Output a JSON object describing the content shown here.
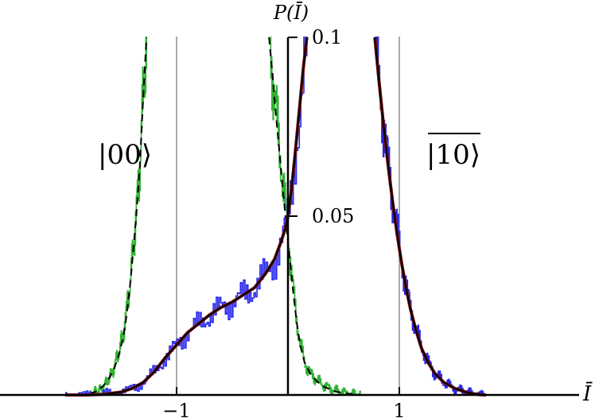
{
  "chart_data": {
    "type": "line",
    "title": "",
    "xlabel": "Ī",
    "ylabel": "P(Ī)",
    "xlim": [
      -1.77,
      1.77
    ],
    "ylim": [
      0,
      0.1
    ],
    "x_ticks": [
      {
        "value": -1,
        "label": "−1"
      },
      {
        "value": 1,
        "label": "1"
      }
    ],
    "y_ticks": [
      {
        "value": 0.05,
        "label": "0.05"
      },
      {
        "value": 0.1,
        "label": "0.1"
      }
    ],
    "vertical_gridlines": [
      -1,
      0,
      1
    ],
    "annotations": [
      {
        "text": "|00⟩",
        "x": -1.2,
        "y": 0.07
      },
      {
        "text": "|10⟩",
        "x": 0.45,
        "y": 0.07,
        "overline": true
      }
    ],
    "colors": {
      "histogram_green": "#33b233",
      "histogram_blue": "#2626ee",
      "fit_dark_red": "#7a1010",
      "theory_black": "#000000",
      "gridline": "#aaaaaa"
    },
    "series": [
      {
        "color": "#33b233",
        "style": "histogram",
        "x": [
          -1.78,
          -1.72,
          -1.66,
          -1.6,
          -1.56,
          -1.52,
          -1.48,
          -1.45,
          -1.42,
          -1.39,
          -1.36,
          -1.33,
          -1.31,
          -1.29,
          -1.27
        ],
        "values": [
          0.0002,
          0.001,
          0.002,
          0.005,
          0.008,
          0.012,
          0.017,
          0.024,
          0.031,
          0.041,
          0.052,
          0.065,
          0.078,
          0.09,
          0.1
        ]
      },
      {
        "color": "#000000",
        "style": "dashed",
        "x": [
          -1.78,
          -1.72,
          -1.66,
          -1.6,
          -1.56,
          -1.52,
          -1.48,
          -1.45,
          -1.42,
          -1.39,
          -1.36,
          -1.33,
          -1.31,
          -1.29,
          -1.27
        ],
        "values": [
          0.0003,
          0.001,
          0.0025,
          0.005,
          0.0075,
          0.011,
          0.016,
          0.022,
          0.03,
          0.04,
          0.051,
          0.064,
          0.077,
          0.089,
          0.1
        ]
      },
      {
        "color": "#33b233",
        "style": "histogram",
        "x": [
          -0.17,
          -0.14,
          -0.11,
          -0.08,
          -0.05,
          -0.02,
          0.02,
          0.05,
          0.08,
          0.11,
          0.15,
          0.2,
          0.26,
          0.33,
          0.42,
          0.55,
          0.65
        ],
        "values": [
          0.1,
          0.09,
          0.08,
          0.07,
          0.06,
          0.05,
          0.038,
          0.028,
          0.02,
          0.014,
          0.009,
          0.006,
          0.004,
          0.0025,
          0.0012,
          0.0004,
          0.0
        ]
      },
      {
        "color": "#000000",
        "style": "dashed",
        "x": [
          -0.17,
          -0.14,
          -0.11,
          -0.08,
          -0.05,
          -0.02,
          0.02,
          0.05,
          0.08,
          0.11,
          0.15,
          0.2,
          0.26,
          0.33,
          0.42,
          0.55,
          0.65
        ],
        "values": [
          0.1,
          0.09,
          0.079,
          0.069,
          0.059,
          0.049,
          0.037,
          0.028,
          0.02,
          0.014,
          0.009,
          0.006,
          0.0038,
          0.0022,
          0.001,
          0.0003,
          0.0
        ]
      },
      {
        "color": "#2626ee",
        "style": "histogram",
        "x": [
          -2.0,
          -1.8,
          -1.65,
          -1.5,
          -1.4,
          -1.3,
          -1.2,
          -1.1,
          -1.0,
          -0.9,
          -0.8,
          -0.7,
          -0.6,
          -0.5,
          -0.4,
          -0.3,
          -0.2,
          -0.12,
          -0.06,
          -0.02,
          0.0,
          0.03,
          0.06,
          0.1,
          0.14,
          0.17
        ],
        "values": [
          0.0,
          0.0,
          0.0002,
          0.0008,
          0.0018,
          0.0035,
          0.0065,
          0.0105,
          0.014,
          0.0175,
          0.02,
          0.0225,
          0.0245,
          0.026,
          0.028,
          0.03,
          0.034,
          0.038,
          0.043,
          0.047,
          0.05,
          0.057,
          0.066,
          0.079,
          0.092,
          0.1
        ]
      },
      {
        "color": "#7a1010",
        "style": "solid",
        "x": [
          -2.0,
          -1.8,
          -1.65,
          -1.5,
          -1.4,
          -1.3,
          -1.2,
          -1.1,
          -1.0,
          -0.9,
          -0.8,
          -0.7,
          -0.6,
          -0.5,
          -0.4,
          -0.3,
          -0.2,
          -0.12,
          -0.06,
          -0.02,
          0.0,
          0.03,
          0.06,
          0.1,
          0.14,
          0.17
        ],
        "values": [
          0.0,
          0.0,
          0.0002,
          0.0008,
          0.0018,
          0.0035,
          0.0065,
          0.0105,
          0.014,
          0.0175,
          0.02,
          0.0225,
          0.0245,
          0.026,
          0.028,
          0.03,
          0.034,
          0.038,
          0.043,
          0.047,
          0.05,
          0.057,
          0.066,
          0.079,
          0.092,
          0.1
        ]
      },
      {
        "color": "#000000",
        "style": "solid",
        "x": [
          -2.0,
          -1.8,
          -1.65,
          -1.5,
          -1.4,
          -1.3,
          -1.2,
          -1.1,
          -1.0,
          -0.9,
          -0.8,
          -0.7,
          -0.6,
          -0.5,
          -0.4,
          -0.3,
          -0.2,
          -0.12,
          -0.06,
          -0.02,
          0.0,
          0.03,
          0.06,
          0.1,
          0.14,
          0.17
        ],
        "values": [
          0.0,
          0.0,
          0.0002,
          0.0008,
          0.0018,
          0.0035,
          0.0065,
          0.0105,
          0.014,
          0.0175,
          0.02,
          0.0225,
          0.0245,
          0.026,
          0.028,
          0.03,
          0.034,
          0.038,
          0.043,
          0.047,
          0.05,
          0.057,
          0.066,
          0.079,
          0.092,
          0.1
        ]
      },
      {
        "color": "#2626ee",
        "style": "histogram",
        "x": [
          0.78,
          0.82,
          0.86,
          0.9,
          0.94,
          0.98,
          1.02,
          1.06,
          1.1,
          1.15,
          1.2,
          1.26,
          1.32,
          1.4,
          1.5,
          1.62,
          1.72,
          1.78
        ],
        "values": [
          0.1,
          0.087,
          0.075,
          0.064,
          0.054,
          0.045,
          0.037,
          0.03,
          0.024,
          0.018,
          0.013,
          0.009,
          0.006,
          0.0035,
          0.0018,
          0.0006,
          0.0001,
          0.0
        ]
      },
      {
        "color": "#7a1010",
        "style": "solid",
        "x": [
          0.78,
          0.82,
          0.86,
          0.9,
          0.94,
          0.98,
          1.02,
          1.06,
          1.1,
          1.15,
          1.2,
          1.26,
          1.32,
          1.4,
          1.5,
          1.62,
          1.72,
          1.78
        ],
        "values": [
          0.1,
          0.087,
          0.075,
          0.064,
          0.054,
          0.045,
          0.037,
          0.03,
          0.024,
          0.018,
          0.013,
          0.009,
          0.006,
          0.0035,
          0.0018,
          0.0006,
          0.0001,
          0.0
        ]
      },
      {
        "color": "#000000",
        "style": "solid",
        "x": [
          0.78,
          0.82,
          0.86,
          0.9,
          0.94,
          0.98,
          1.02,
          1.06,
          1.1,
          1.15,
          1.2,
          1.26,
          1.32,
          1.4,
          1.5,
          1.62,
          1.72,
          1.78
        ],
        "values": [
          0.1,
          0.087,
          0.075,
          0.064,
          0.054,
          0.045,
          0.037,
          0.03,
          0.024,
          0.018,
          0.013,
          0.009,
          0.006,
          0.0035,
          0.0018,
          0.0006,
          0.0001,
          0.0
        ]
      }
    ]
  }
}
